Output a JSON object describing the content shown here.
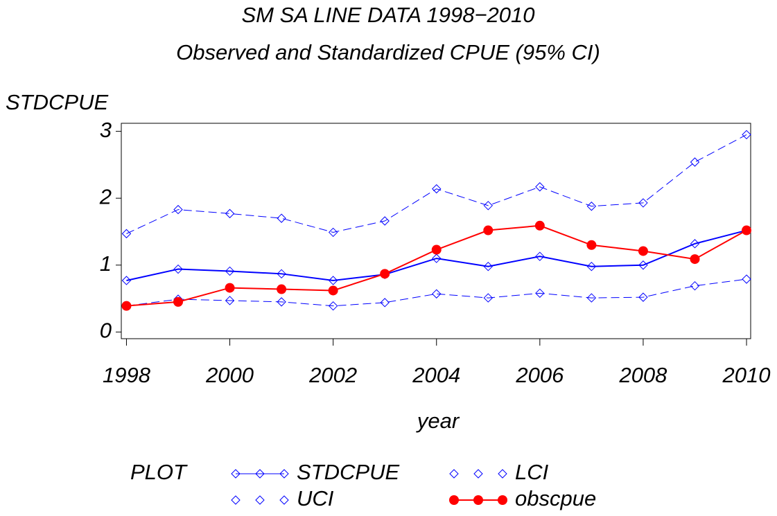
{
  "chart_data": {
    "type": "line",
    "title": "SM SA LINE DATA 1998−2010",
    "subtitle": "Observed and Standardized CPUE (95% CI)",
    "y_label": "STDCPUE",
    "x_label": "year",
    "legend_title": "PLOT",
    "legend_position": "bottom",
    "x": [
      1998,
      1999,
      2000,
      2001,
      2002,
      2003,
      2004,
      2005,
      2006,
      2007,
      2008,
      2009,
      2010
    ],
    "xlim": [
      1997.9,
      2010.08
    ],
    "xticks": [
      1998,
      2000,
      2002,
      2004,
      2006,
      2008,
      2010
    ],
    "ylim": [
      -0.1,
      3.12
    ],
    "yticks": [
      0,
      1,
      2,
      3
    ],
    "series": [
      {
        "name": "STDCPUE",
        "color": "#0000ff",
        "dashed": false,
        "marker": "diamond",
        "values": [
          0.77,
          0.94,
          0.91,
          0.87,
          0.77,
          0.86,
          1.1,
          0.98,
          1.13,
          0.98,
          1.0,
          1.32,
          1.52
        ]
      },
      {
        "name": "LCI",
        "color": "#0000ff",
        "dashed": true,
        "marker": "diamond",
        "values": [
          0.39,
          0.49,
          0.47,
          0.45,
          0.39,
          0.44,
          0.57,
          0.51,
          0.58,
          0.51,
          0.52,
          0.69,
          0.79
        ]
      },
      {
        "name": "UCI",
        "color": "#0000ff",
        "dashed": true,
        "marker": "diamond",
        "values": [
          1.47,
          1.83,
          1.77,
          1.7,
          1.49,
          1.66,
          2.14,
          1.89,
          2.17,
          1.88,
          1.93,
          2.54,
          2.95
        ]
      },
      {
        "name": "obscpue",
        "color": "#ff0000",
        "dashed": false,
        "marker": "dot",
        "values": [
          0.39,
          0.45,
          0.66,
          0.64,
          0.62,
          0.87,
          1.23,
          1.52,
          1.59,
          1.3,
          1.21,
          1.09,
          1.52
        ]
      }
    ]
  }
}
